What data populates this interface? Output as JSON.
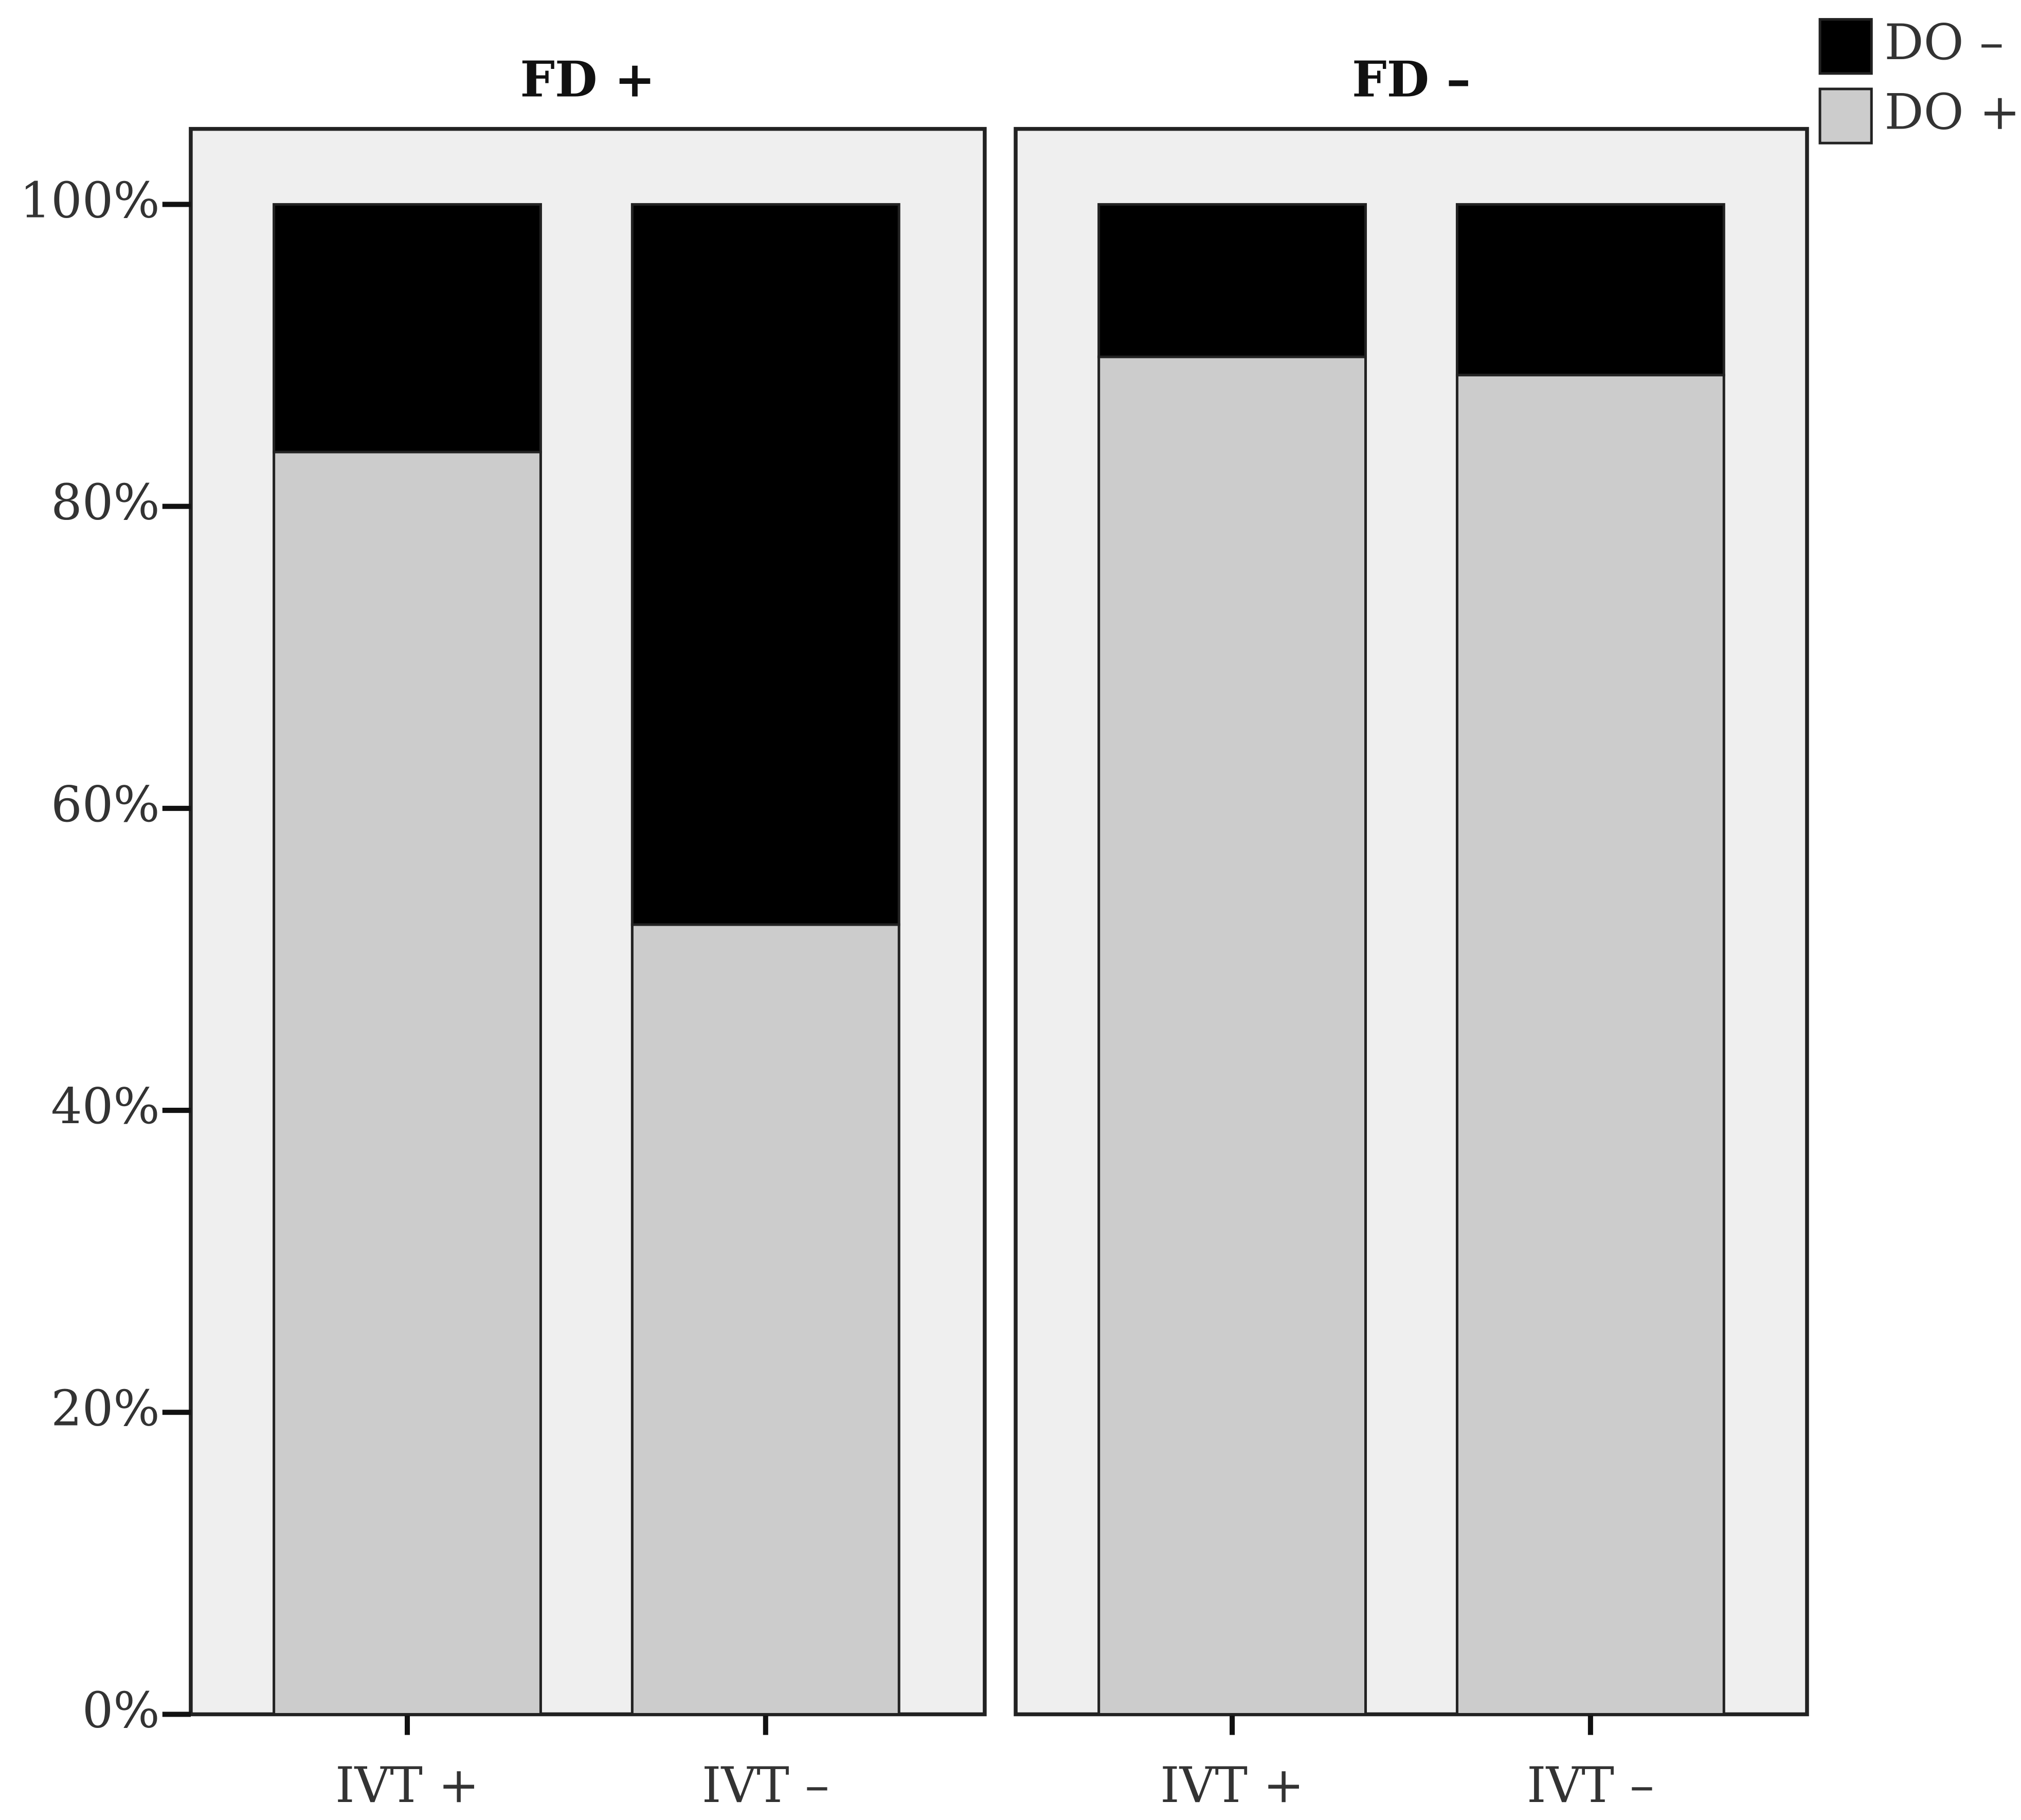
{
  "chart_data": [
    {
      "type": "bar",
      "title": "FD +",
      "categories": [
        "IVT +",
        "IVT –"
      ],
      "series": [
        {
          "name": "DO +",
          "color": "#cccccc",
          "values": [
            83.6,
            52.3
          ]
        },
        {
          "name": "DO –",
          "color": "#000000",
          "values": [
            16.4,
            47.7
          ]
        }
      ],
      "stacked": true,
      "ylim": [
        0,
        105
      ],
      "yticks": [
        {
          "value": 0,
          "label": "0%"
        },
        {
          "value": 20,
          "label": "20%"
        },
        {
          "value": 40,
          "label": "40%"
        },
        {
          "value": 60,
          "label": "60%"
        },
        {
          "value": 80,
          "label": "80%"
        },
        {
          "value": 100,
          "label": "100%"
        }
      ]
    },
    {
      "type": "bar",
      "title": "FD –",
      "categories": [
        "IVT +",
        "IVT –"
      ],
      "series": [
        {
          "name": "DO +",
          "color": "#cccccc",
          "values": [
            89.9,
            88.7
          ]
        },
        {
          "name": "DO –",
          "color": "#000000",
          "values": [
            10.1,
            11.3
          ]
        }
      ],
      "stacked": true,
      "ylim": [
        0,
        105
      ]
    }
  ]
}
